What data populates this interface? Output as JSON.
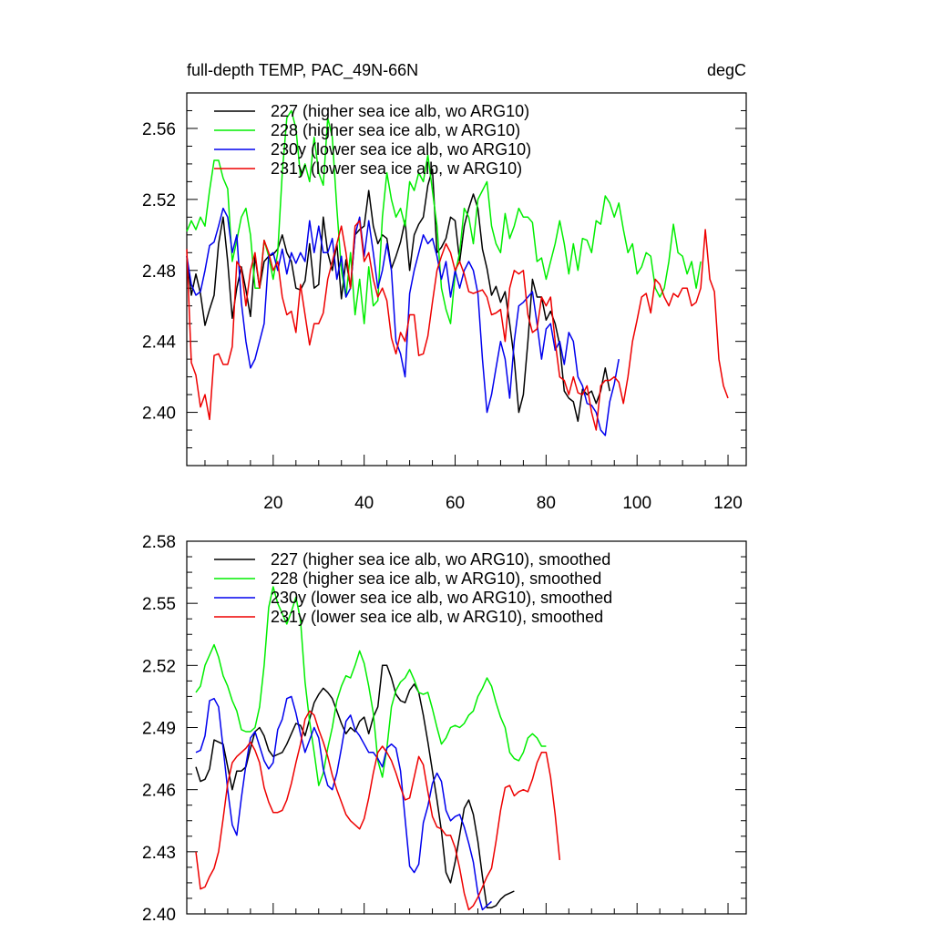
{
  "chart_data": [
    {
      "type": "line",
      "title_left": "full-depth TEMP, PAC_49N-66N",
      "title_right": "degC",
      "xlim": [
        1,
        124
      ],
      "ylim": [
        2.37,
        2.58
      ],
      "xticks": [
        20,
        40,
        60,
        80,
        100,
        120
      ],
      "xtick_labels": [
        "20",
        "40",
        "60",
        "80",
        "100",
        "120"
      ],
      "yticks": [
        2.4,
        2.44,
        2.48,
        2.52,
        2.56
      ],
      "ytick_labels": [
        "2.40",
        "2.44",
        "2.48",
        "2.52",
        "2.56"
      ],
      "x_start": 1,
      "legend_position": "top-left",
      "series": [
        {
          "name": "227 (higher sea ice alb, wo ARG10)",
          "color": "#000000",
          "values": [
            2.488,
            2.466,
            2.478,
            2.467,
            2.449,
            2.458,
            2.466,
            2.495,
            2.51,
            2.485,
            2.453,
            2.47,
            2.482,
            2.469,
            2.454,
            2.488,
            2.47,
            2.485,
            2.488,
            2.489,
            2.492,
            2.5,
            2.49,
            2.485,
            2.47,
            2.469,
            2.474,
            2.495,
            2.47,
            2.472,
            2.51,
            2.49,
            2.48,
            2.495,
            2.464,
            2.486,
            2.47,
            2.5,
            2.503,
            2.505,
            2.525,
            2.505,
            2.495,
            2.5,
            2.498,
            2.481,
            2.488,
            2.496,
            2.508,
            2.48,
            2.5,
            2.506,
            2.51,
            2.528,
            2.537,
            2.49,
            2.493,
            2.498,
            2.51,
            2.508,
            2.485,
            2.505,
            2.515,
            2.523,
            2.515,
            2.492,
            2.481,
            2.466,
            2.471,
            2.462,
            2.468,
            2.45,
            2.43,
            2.4,
            2.41,
            2.44,
            2.475,
            2.465,
            2.465,
            2.452,
            2.457,
            2.45,
            2.438,
            2.412,
            2.408,
            2.406,
            2.395,
            2.413,
            2.41,
            2.412,
            2.405,
            2.412,
            2.425,
            2.412
          ]
        },
        {
          "name": "228 (higher sea ice alb, w ARG10)",
          "color": "#00ee00",
          "values": [
            2.502,
            2.508,
            2.503,
            2.51,
            2.505,
            2.525,
            2.542,
            2.542,
            2.532,
            2.526,
            2.485,
            2.497,
            2.51,
            2.515,
            2.5,
            2.47,
            2.47,
            2.497,
            2.488,
            2.475,
            2.49,
            2.535,
            2.566,
            2.57,
            2.56,
            2.533,
            2.54,
            2.53,
            2.555,
            2.535,
            2.528,
            2.566,
            2.555,
            2.515,
            2.48,
            2.465,
            2.49,
            2.455,
            2.475,
            2.45,
            2.482,
            2.46,
            2.463,
            2.51,
            2.535,
            2.52,
            2.51,
            2.515,
            2.505,
            2.53,
            2.525,
            2.535,
            2.53,
            2.545,
            2.525,
            2.505,
            2.47,
            2.458,
            2.45,
            2.478,
            2.49,
            2.515,
            2.51,
            2.495,
            2.52,
            2.525,
            2.53,
            2.505,
            2.495,
            2.49,
            2.512,
            2.498,
            2.505,
            2.515,
            2.51,
            2.51,
            2.507,
            2.485,
            2.487,
            2.475,
            2.485,
            2.495,
            2.508,
            2.495,
            2.478,
            2.495,
            2.48,
            2.498,
            2.497,
            2.49,
            2.508,
            2.506,
            2.522,
            2.518,
            2.51,
            2.518,
            2.503,
            2.49,
            2.495,
            2.478,
            2.482,
            2.49,
            2.488,
            2.47,
            2.465,
            2.47,
            2.485,
            2.506,
            2.49,
            2.488,
            2.478,
            2.485,
            2.47,
            2.485
          ]
        },
        {
          "name": "230y (lower sea ice alb, wo ARG10)",
          "color": "#0000ee",
          "values": [
            2.488,
            2.472,
            2.466,
            2.468,
            2.48,
            2.494,
            2.496,
            2.505,
            2.515,
            2.51,
            2.49,
            2.5,
            2.462,
            2.44,
            2.425,
            2.43,
            2.44,
            2.45,
            2.488,
            2.49,
            2.48,
            2.492,
            2.478,
            2.49,
            2.484,
            2.49,
            2.485,
            2.508,
            2.49,
            2.505,
            2.49,
            2.49,
            2.498,
            2.475,
            2.488,
            2.465,
            2.47,
            2.5,
            2.51,
            2.488,
            2.508,
            2.49,
            2.47,
            2.48,
            2.495,
            2.48,
            2.44,
            2.433,
            2.42,
            2.467,
            2.48,
            2.49,
            2.5,
            2.495,
            2.498,
            2.488,
            2.475,
            2.485,
            2.465,
            2.48,
            2.47,
            2.48,
            2.485,
            2.48,
            2.467,
            2.43,
            2.4,
            2.41,
            2.425,
            2.44,
            2.43,
            2.408,
            2.44,
            2.46,
            2.462,
            2.465,
            2.468,
            2.45,
            2.43,
            2.447,
            2.45,
            2.435,
            2.44,
            2.427,
            2.445,
            2.44,
            2.42,
            2.415,
            2.405,
            2.404,
            2.4,
            2.39,
            2.387,
            2.406,
            2.416,
            2.43
          ]
        },
        {
          "name": "231y (lower sea ice alb, w ARG10)",
          "color": "#ee0000",
          "values": [
            2.492,
            2.428,
            2.421,
            2.403,
            2.41,
            2.396,
            2.432,
            2.433,
            2.427,
            2.427,
            2.437,
            2.485,
            2.481,
            2.46,
            2.48,
            2.49,
            2.47,
            2.497,
            2.49,
            2.48,
            2.485,
            2.465,
            2.455,
            2.457,
            2.445,
            2.472,
            2.455,
            2.438,
            2.45,
            2.45,
            2.456,
            2.475,
            2.485,
            2.495,
            2.505,
            2.49,
            2.47,
            2.505,
            2.508,
            2.485,
            2.49,
            2.475,
            2.465,
            2.47,
            2.463,
            2.442,
            2.433,
            2.445,
            2.44,
            2.455,
            2.455,
            2.432,
            2.433,
            2.443,
            2.462,
            2.48,
            2.488,
            2.495,
            2.49,
            2.48,
            2.485,
            2.478,
            2.468,
            2.467,
            2.468,
            2.469,
            2.465,
            2.455,
            2.456,
            2.458,
            2.44,
            2.47,
            2.48,
            2.478,
            2.48,
            2.455,
            2.445,
            2.447,
            2.465,
            2.46,
            2.465,
            2.44,
            2.42,
            2.418,
            2.41,
            2.42,
            2.411,
            2.41,
            2.415,
            2.4,
            2.39,
            2.415,
            2.418,
            2.418,
            2.42,
            2.417,
            2.405,
            2.42,
            2.44,
            2.452,
            2.465,
            2.467,
            2.456,
            2.475,
            2.472,
            2.465,
            2.46,
            2.467,
            2.465,
            2.47,
            2.47,
            2.46,
            2.462,
            2.47,
            2.503,
            2.475,
            2.468,
            2.43,
            2.415,
            2.408
          ]
        }
      ]
    },
    {
      "type": "line",
      "xlim": [
        1,
        124
      ],
      "ylim": [
        2.4,
        2.58
      ],
      "xticks": [
        20,
        40,
        60,
        80,
        100,
        120
      ],
      "yticks": [
        2.4,
        2.43,
        2.46,
        2.49,
        2.52,
        2.55,
        2.58
      ],
      "ytick_labels": [
        "2.40",
        "2.43",
        "2.46",
        "2.49",
        "2.52",
        "2.55",
        "2.58"
      ],
      "x_start": 3,
      "legend_position": "top-left",
      "series": [
        {
          "name": "227 (higher sea ice alb, wo ARG10), smoothed",
          "color": "#000000",
          "values": [
            2.471,
            2.464,
            2.465,
            2.47,
            2.484,
            2.483,
            2.482,
            2.471,
            2.46,
            2.469,
            2.469,
            2.471,
            2.48,
            2.488,
            2.49,
            2.486,
            2.479,
            2.476,
            2.477,
            2.478,
            2.482,
            2.487,
            2.492,
            2.491,
            2.486,
            2.494,
            2.502,
            2.506,
            2.509,
            2.507,
            2.504,
            2.498,
            2.492,
            2.487,
            2.49,
            2.488,
            2.493,
            2.495,
            2.487,
            2.495,
            2.5,
            2.52,
            2.52,
            2.514,
            2.506,
            2.503,
            2.502,
            2.508,
            2.511,
            2.507,
            2.496,
            2.483,
            2.469,
            2.455,
            2.44,
            2.42,
            2.415,
            2.425,
            2.438,
            2.451,
            2.455,
            2.448,
            2.435,
            2.418,
            2.403,
            2.403,
            2.404,
            2.407,
            2.409,
            2.41,
            2.411
          ]
        },
        {
          "name": "228 (higher sea ice alb, w ARG10), smoothed",
          "color": "#00ee00",
          "values": [
            2.507,
            2.51,
            2.52,
            2.525,
            2.53,
            2.524,
            2.515,
            2.51,
            2.503,
            2.498,
            2.489,
            2.488,
            2.488,
            2.49,
            2.5,
            2.52,
            2.548,
            2.558,
            2.55,
            2.545,
            2.54,
            2.546,
            2.553,
            2.542,
            2.512,
            2.493,
            2.478,
            2.462,
            2.468,
            2.48,
            2.49,
            2.503,
            2.51,
            2.515,
            2.514,
            2.52,
            2.527,
            2.521,
            2.51,
            2.497,
            2.474,
            2.466,
            2.48,
            2.5,
            2.508,
            2.512,
            2.514,
            2.518,
            2.513,
            2.507,
            2.506,
            2.507,
            2.499,
            2.49,
            2.482,
            2.485,
            2.49,
            2.491,
            2.49,
            2.492,
            2.496,
            2.498,
            2.505,
            2.509,
            2.514,
            2.51,
            2.502,
            2.495,
            2.49,
            2.478,
            2.475,
            2.474,
            2.478,
            2.485,
            2.487,
            2.485,
            2.481,
            2.481
          ]
        },
        {
          "name": "230y (lower sea ice alb, wo ARG10), smoothed",
          "color": "#0000ee",
          "values": [
            2.478,
            2.479,
            2.486,
            2.503,
            2.504,
            2.5,
            2.48,
            2.46,
            2.443,
            2.438,
            2.456,
            2.472,
            2.485,
            2.488,
            2.481,
            2.474,
            2.47,
            2.473,
            2.489,
            2.494,
            2.504,
            2.505,
            2.497,
            2.487,
            2.478,
            2.484,
            2.49,
            2.485,
            2.47,
            2.462,
            2.46,
            2.468,
            2.48,
            2.493,
            2.496,
            2.489,
            2.486,
            2.482,
            2.478,
            2.478,
            2.475,
            2.471,
            2.48,
            2.482,
            2.48,
            2.469,
            2.446,
            2.423,
            2.42,
            2.424,
            2.444,
            2.452,
            2.463,
            2.468,
            2.464,
            2.45,
            2.445,
            2.447,
            2.448,
            2.442,
            2.434,
            2.425,
            2.41,
            2.402,
            2.404,
            2.406
          ]
        },
        {
          "name": "231y (lower sea ice alb, w ARG10), smoothed",
          "color": "#ee0000",
          "values": [
            2.43,
            2.412,
            2.413,
            2.418,
            2.422,
            2.43,
            2.446,
            2.463,
            2.473,
            2.476,
            2.478,
            2.48,
            2.483,
            2.479,
            2.473,
            2.461,
            2.454,
            2.449,
            2.449,
            2.45,
            2.455,
            2.463,
            2.473,
            2.482,
            2.494,
            2.498,
            2.496,
            2.489,
            2.483,
            2.476,
            2.467,
            2.46,
            2.454,
            2.448,
            2.445,
            2.443,
            2.441,
            2.446,
            2.456,
            2.468,
            2.478,
            2.481,
            2.478,
            2.474,
            2.468,
            2.461,
            2.455,
            2.456,
            2.466,
            2.476,
            2.472,
            2.459,
            2.447,
            2.442,
            2.441,
            2.438,
            2.438,
            2.432,
            2.422,
            2.41,
            2.402,
            2.404,
            2.408,
            2.413,
            2.418,
            2.422,
            2.435,
            2.45,
            2.461,
            2.462,
            2.457,
            2.459,
            2.46,
            2.459,
            2.465,
            2.473,
            2.478,
            2.478,
            2.466,
            2.448,
            2.426
          ]
        }
      ]
    }
  ]
}
